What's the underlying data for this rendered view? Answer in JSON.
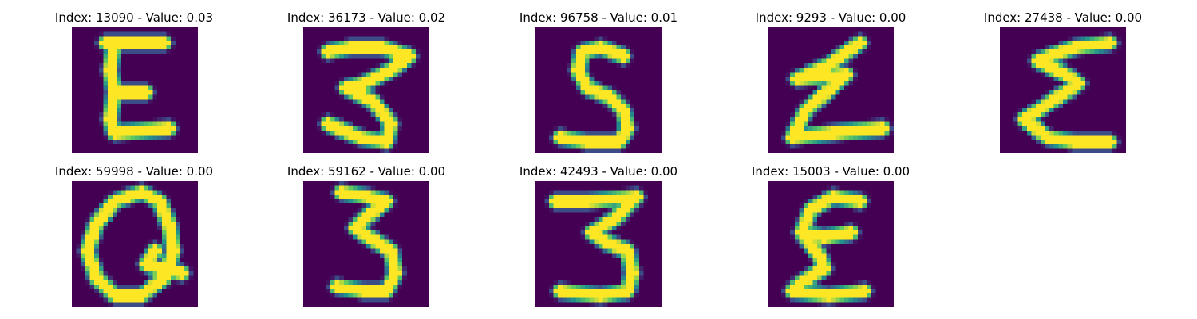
{
  "colors": {
    "background": "#440154",
    "foreground": "#fde725"
  },
  "grid_images": [
    {
      "index_text": "Index: 13090 - Value: 0.03",
      "index": 13090,
      "value": 0.03,
      "glyph": "E-letter"
    },
    {
      "index_text": "Index: 36173 - Value: 0.02",
      "index": 36173,
      "value": 0.02,
      "glyph": "3-like"
    },
    {
      "index_text": "Index: 96758 - Value: 0.01",
      "index": 96758,
      "value": 0.01,
      "glyph": "S-like"
    },
    {
      "index_text": "Index: 9293 - Value: 0.00",
      "index": 9293,
      "value": 0.0,
      "glyph": "Z-like"
    },
    {
      "index_text": "Index: 27438 - Value: 0.00",
      "index": 27438,
      "value": 0.0,
      "glyph": "Sigma-like"
    },
    {
      "index_text": "Index: 59998 - Value: 0.00",
      "index": 59998,
      "value": 0.0,
      "glyph": "Q-loop"
    },
    {
      "index_text": "Index: 59162 - Value: 0.00",
      "index": 59162,
      "value": 0.0,
      "glyph": "3"
    },
    {
      "index_text": "Index: 42493 - Value: 0.00",
      "index": 42493,
      "value": 0.0,
      "glyph": "3"
    },
    {
      "index_text": "Index: 15003 - Value: 0.00",
      "index": 15003,
      "value": 0.0,
      "glyph": "E-curly"
    }
  ]
}
